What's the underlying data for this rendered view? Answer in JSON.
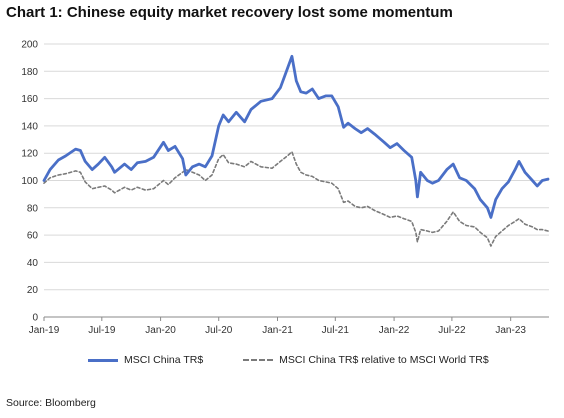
{
  "title": "Chart 1: Chinese equity market recovery lost some momentum",
  "source": "Source: Bloomberg",
  "chart_data": {
    "type": "line",
    "ylim": [
      0,
      200
    ],
    "yticks": [
      0,
      20,
      40,
      60,
      80,
      100,
      120,
      140,
      160,
      180,
      200
    ],
    "x_range": [
      "2019-01-01",
      "2023-05-01"
    ],
    "xticks": [
      {
        "date": "2019-01-01",
        "label": "Jan-19"
      },
      {
        "date": "2019-07-01",
        "label": "Jul-19"
      },
      {
        "date": "2020-01-01",
        "label": "Jan-20"
      },
      {
        "date": "2020-07-01",
        "label": "Jul-20"
      },
      {
        "date": "2021-01-01",
        "label": "Jan-21"
      },
      {
        "date": "2021-07-01",
        "label": "Jul-21"
      },
      {
        "date": "2022-01-01",
        "label": "Jan-22"
      },
      {
        "date": "2022-07-01",
        "label": "Jul-22"
      },
      {
        "date": "2023-01-01",
        "label": "Jan-23"
      }
    ],
    "grid": true,
    "legend": "bottom",
    "series": [
      {
        "name": "MSCI China TR$",
        "color": "#4a6fc7",
        "style": "solid",
        "points": [
          [
            "2019-01-01",
            100
          ],
          [
            "2019-01-20",
            108
          ],
          [
            "2019-02-15",
            115
          ],
          [
            "2019-03-10",
            118
          ],
          [
            "2019-04-10",
            123
          ],
          [
            "2019-04-25",
            122
          ],
          [
            "2019-05-10",
            114
          ],
          [
            "2019-06-01",
            108
          ],
          [
            "2019-06-20",
            112
          ],
          [
            "2019-07-10",
            117
          ],
          [
            "2019-08-01",
            110
          ],
          [
            "2019-08-10",
            106
          ],
          [
            "2019-09-10",
            112
          ],
          [
            "2019-10-01",
            108
          ],
          [
            "2019-10-20",
            113
          ],
          [
            "2019-11-15",
            114
          ],
          [
            "2019-12-10",
            117
          ],
          [
            "2020-01-10",
            128
          ],
          [
            "2020-01-25",
            122
          ],
          [
            "2020-02-15",
            125
          ],
          [
            "2020-03-10",
            116
          ],
          [
            "2020-03-20",
            104
          ],
          [
            "2020-04-10",
            110
          ],
          [
            "2020-05-01",
            112
          ],
          [
            "2020-05-20",
            110
          ],
          [
            "2020-06-10",
            118
          ],
          [
            "2020-07-01",
            140
          ],
          [
            "2020-07-15",
            148
          ],
          [
            "2020-08-01",
            143
          ],
          [
            "2020-08-25",
            150
          ],
          [
            "2020-09-20",
            143
          ],
          [
            "2020-10-10",
            152
          ],
          [
            "2020-11-10",
            158
          ],
          [
            "2020-12-15",
            160
          ],
          [
            "2021-01-10",
            168
          ],
          [
            "2021-02-01",
            182
          ],
          [
            "2021-02-15",
            191
          ],
          [
            "2021-03-01",
            173
          ],
          [
            "2021-03-15",
            165
          ],
          [
            "2021-04-01",
            164
          ],
          [
            "2021-04-20",
            167
          ],
          [
            "2021-05-10",
            160
          ],
          [
            "2021-06-01",
            162
          ],
          [
            "2021-06-20",
            162
          ],
          [
            "2021-07-10",
            154
          ],
          [
            "2021-07-27",
            139
          ],
          [
            "2021-08-10",
            142
          ],
          [
            "2021-09-01",
            138
          ],
          [
            "2021-09-20",
            135
          ],
          [
            "2021-10-10",
            138
          ],
          [
            "2021-11-01",
            134
          ],
          [
            "2021-12-01",
            128
          ],
          [
            "2021-12-20",
            124
          ],
          [
            "2022-01-10",
            127
          ],
          [
            "2022-02-01",
            122
          ],
          [
            "2022-02-25",
            117
          ],
          [
            "2022-03-10",
            100
          ],
          [
            "2022-03-15",
            88
          ],
          [
            "2022-03-25",
            106
          ],
          [
            "2022-04-15",
            100
          ],
          [
            "2022-05-01",
            98
          ],
          [
            "2022-05-20",
            100
          ],
          [
            "2022-06-15",
            108
          ],
          [
            "2022-07-05",
            112
          ],
          [
            "2022-07-25",
            102
          ],
          [
            "2022-08-15",
            100
          ],
          [
            "2022-09-10",
            94
          ],
          [
            "2022-09-28",
            86
          ],
          [
            "2022-10-20",
            80
          ],
          [
            "2022-10-31",
            73
          ],
          [
            "2022-11-15",
            86
          ],
          [
            "2022-12-05",
            94
          ],
          [
            "2022-12-25",
            99
          ],
          [
            "2023-01-15",
            108
          ],
          [
            "2023-01-27",
            114
          ],
          [
            "2023-02-15",
            106
          ],
          [
            "2023-03-10",
            100
          ],
          [
            "2023-03-25",
            96
          ],
          [
            "2023-04-10",
            100
          ],
          [
            "2023-04-28",
            101
          ]
        ]
      },
      {
        "name": "MSCI China TR$ relative to MSCI World TR$",
        "color": "#7a7a7a",
        "style": "dashed",
        "points": [
          [
            "2019-01-01",
            98
          ],
          [
            "2019-01-20",
            102
          ],
          [
            "2019-02-15",
            104
          ],
          [
            "2019-03-10",
            105
          ],
          [
            "2019-04-10",
            107
          ],
          [
            "2019-04-25",
            106
          ],
          [
            "2019-05-10",
            99
          ],
          [
            "2019-06-01",
            94
          ],
          [
            "2019-06-20",
            95
          ],
          [
            "2019-07-10",
            96
          ],
          [
            "2019-08-01",
            93
          ],
          [
            "2019-08-10",
            91
          ],
          [
            "2019-09-10",
            95
          ],
          [
            "2019-10-01",
            93
          ],
          [
            "2019-10-20",
            95
          ],
          [
            "2019-11-15",
            93
          ],
          [
            "2019-12-10",
            94
          ],
          [
            "2020-01-10",
            100
          ],
          [
            "2020-01-25",
            97
          ],
          [
            "2020-02-15",
            102
          ],
          [
            "2020-03-10",
            106
          ],
          [
            "2020-03-20",
            108
          ],
          [
            "2020-04-10",
            106
          ],
          [
            "2020-05-01",
            104
          ],
          [
            "2020-05-20",
            100
          ],
          [
            "2020-06-10",
            104
          ],
          [
            "2020-07-01",
            116
          ],
          [
            "2020-07-15",
            119
          ],
          [
            "2020-08-01",
            113
          ],
          [
            "2020-08-25",
            112
          ],
          [
            "2020-09-20",
            110
          ],
          [
            "2020-10-10",
            114
          ],
          [
            "2020-11-10",
            110
          ],
          [
            "2020-12-15",
            109
          ],
          [
            "2021-01-10",
            114
          ],
          [
            "2021-02-01",
            118
          ],
          [
            "2021-02-15",
            121
          ],
          [
            "2021-03-01",
            112
          ],
          [
            "2021-03-15",
            106
          ],
          [
            "2021-04-01",
            104
          ],
          [
            "2021-04-20",
            103
          ],
          [
            "2021-05-10",
            100
          ],
          [
            "2021-06-01",
            99
          ],
          [
            "2021-06-20",
            98
          ],
          [
            "2021-07-10",
            94
          ],
          [
            "2021-07-27",
            84
          ],
          [
            "2021-08-10",
            85
          ],
          [
            "2021-09-01",
            81
          ],
          [
            "2021-09-20",
            80
          ],
          [
            "2021-10-10",
            81
          ],
          [
            "2021-11-01",
            78
          ],
          [
            "2021-12-01",
            75
          ],
          [
            "2021-12-20",
            73
          ],
          [
            "2022-01-10",
            74
          ],
          [
            "2022-02-01",
            72
          ],
          [
            "2022-02-25",
            70
          ],
          [
            "2022-03-10",
            62
          ],
          [
            "2022-03-15",
            55
          ],
          [
            "2022-03-25",
            64
          ],
          [
            "2022-04-15",
            63
          ],
          [
            "2022-05-01",
            62
          ],
          [
            "2022-05-20",
            63
          ],
          [
            "2022-06-15",
            70
          ],
          [
            "2022-07-05",
            77
          ],
          [
            "2022-07-25",
            70
          ],
          [
            "2022-08-15",
            67
          ],
          [
            "2022-09-10",
            66
          ],
          [
            "2022-09-28",
            62
          ],
          [
            "2022-10-20",
            58
          ],
          [
            "2022-10-31",
            52
          ],
          [
            "2022-11-15",
            59
          ],
          [
            "2022-12-05",
            63
          ],
          [
            "2022-12-25",
            67
          ],
          [
            "2023-01-15",
            70
          ],
          [
            "2023-01-27",
            72
          ],
          [
            "2023-02-15",
            68
          ],
          [
            "2023-03-10",
            66
          ],
          [
            "2023-03-25",
            64
          ],
          [
            "2023-04-10",
            64
          ],
          [
            "2023-04-28",
            63
          ]
        ]
      }
    ]
  }
}
